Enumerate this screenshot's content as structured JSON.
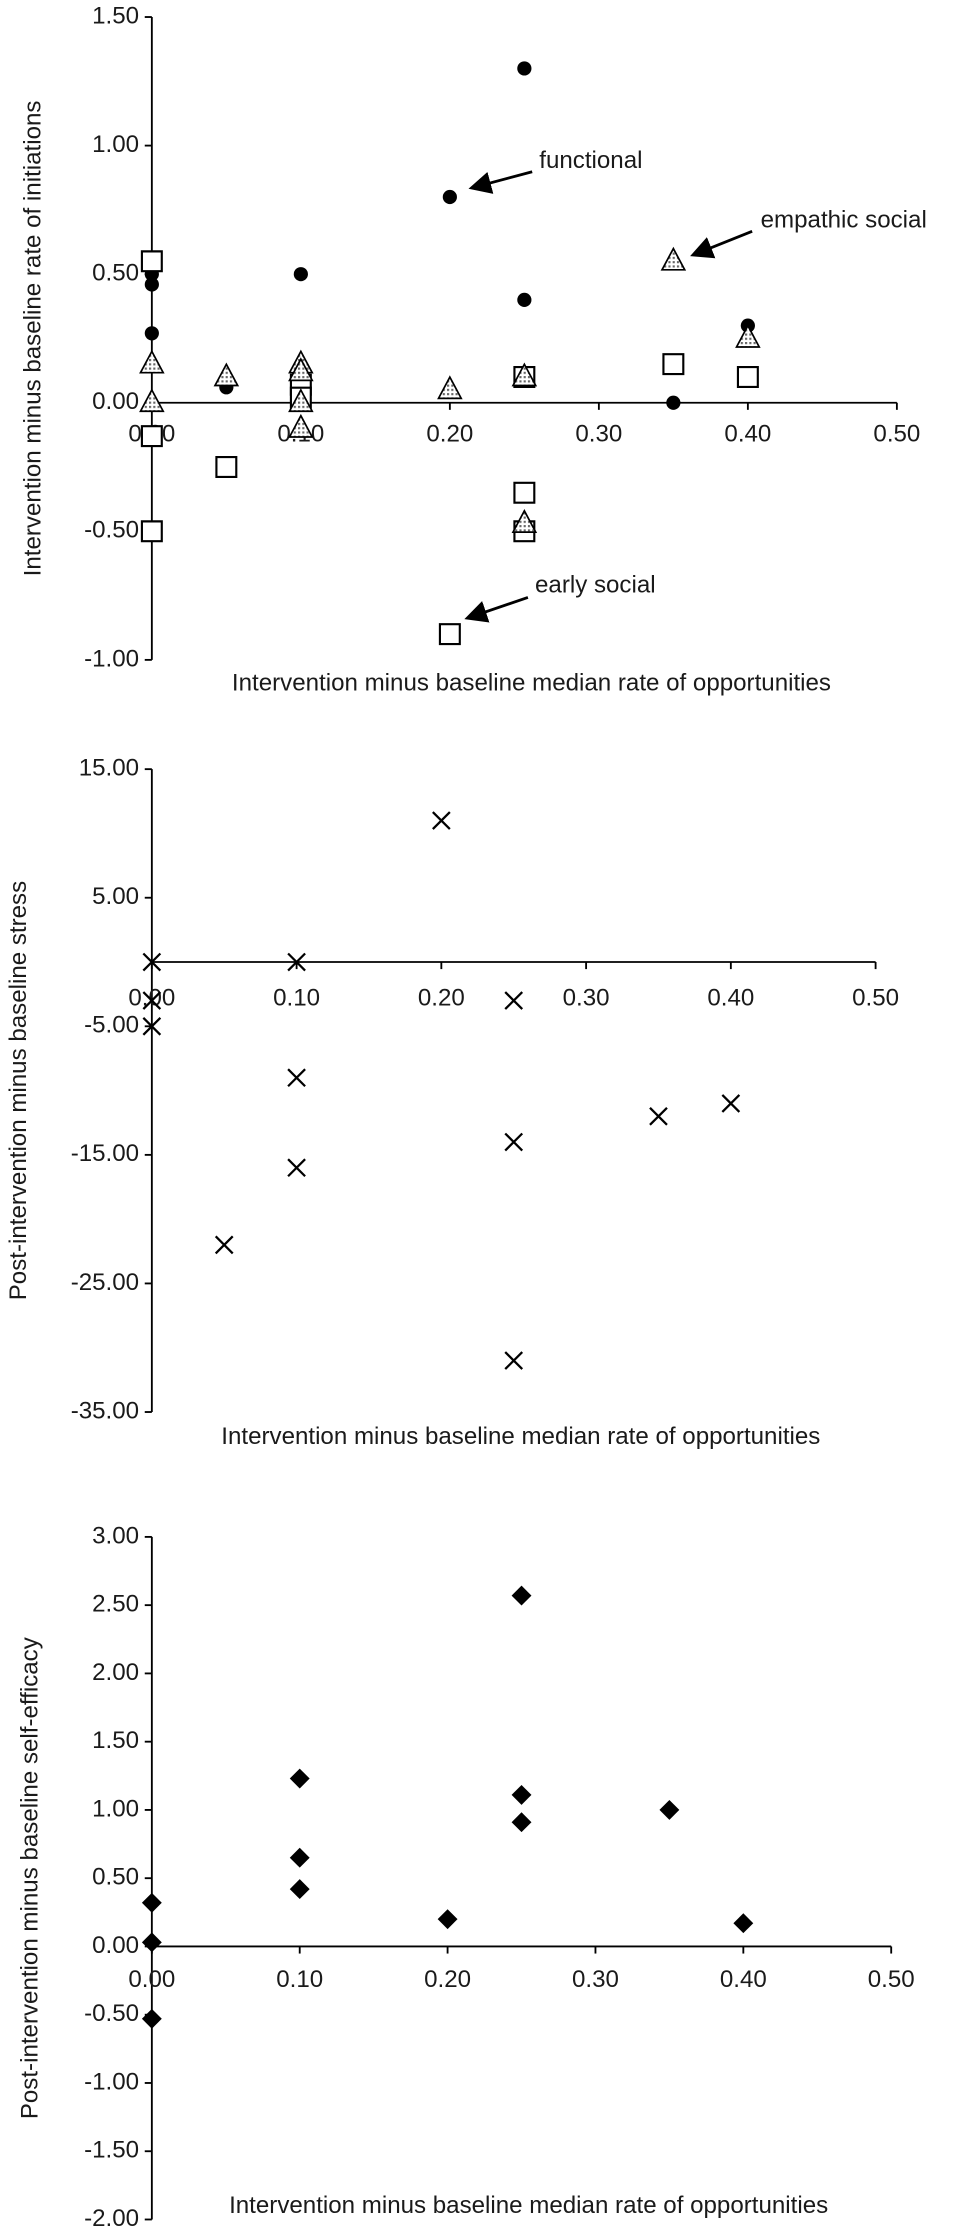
{
  "chart_data": [
    {
      "type": "scatter",
      "x_label": "Intervention minus baseline median rate of opportunities",
      "y_label": "Intervention minus baseline rate of initiations",
      "xlim": [
        0,
        0.5
      ],
      "xticks": [
        {
          "value": 0,
          "label": "0.00"
        },
        {
          "value": 0.1,
          "label": "0.10"
        },
        {
          "value": 0.2,
          "label": "0.20"
        },
        {
          "value": 0.3,
          "label": "0.30"
        },
        {
          "value": 0.4,
          "label": "0.40"
        },
        {
          "value": 0.5,
          "label": "0.50"
        }
      ],
      "ylim": [
        -1,
        1.5
      ],
      "yticks": [
        {
          "value": -1,
          "label": "-1.00"
        },
        {
          "value": -0.5,
          "label": "-0.50"
        },
        {
          "value": 0,
          "label": "0.00"
        },
        {
          "value": 0.5,
          "label": "0.50"
        },
        {
          "value": 1,
          "label": "1.00"
        },
        {
          "value": 1.5,
          "label": "1.50"
        }
      ],
      "series": [
        {
          "name": "functional",
          "marker": "circle",
          "color": "#000000",
          "x": [
            0,
            0,
            0,
            0.05,
            0.1,
            0.1,
            0.2,
            0.25,
            0.25,
            0.25,
            0.35,
            0.4
          ],
          "values": [
            0.5,
            0.46,
            0.27,
            0.06,
            0.5,
            0.1,
            0.8,
            1.3,
            0.4,
            0.1,
            0.0,
            0.3
          ]
        },
        {
          "name": "early social",
          "marker": "square",
          "color": "#000000",
          "x": [
            0,
            0,
            0,
            0.05,
            0.1,
            0.1,
            0.2,
            0.25,
            0.25,
            0.25,
            0.35,
            0.4
          ],
          "values": [
            0.55,
            -0.13,
            -0.5,
            -0.25,
            0.07,
            0.02,
            -0.9,
            -0.35,
            -0.5,
            0.1,
            0.15,
            0.1
          ]
        },
        {
          "name": "empathic social",
          "marker": "triangle",
          "color": "#000000",
          "x": [
            0,
            0,
            0.05,
            0.1,
            0.1,
            0.1,
            0.1,
            0.2,
            0.25,
            0.25,
            0.35,
            0.4
          ],
          "values": [
            0.15,
            0.0,
            0.1,
            0.15,
            0.12,
            0.0,
            -0.1,
            0.05,
            0.1,
            -0.47,
            0.55,
            0.25
          ]
        }
      ]
    },
    {
      "type": "scatter",
      "x_label": "Intervention minus baseline median rate of opportunities",
      "y_label": "Post-intervention minus baseline stress",
      "xlim": [
        0,
        0.5
      ],
      "xticks": [
        {
          "value": 0,
          "label": "0.00"
        },
        {
          "value": 0.1,
          "label": "0.10"
        },
        {
          "value": 0.2,
          "label": "0.20"
        },
        {
          "value": 0.3,
          "label": "0.30"
        },
        {
          "value": 0.4,
          "label": "0.40"
        },
        {
          "value": 0.5,
          "label": "0.50"
        }
      ],
      "ylim": [
        -35,
        15
      ],
      "yticks": [
        {
          "value": -35,
          "label": "-35.00"
        },
        {
          "value": -25,
          "label": "-25.00"
        },
        {
          "value": -15,
          "label": "-15.00"
        },
        {
          "value": -5,
          "label": "-5.00"
        },
        {
          "value": 5,
          "label": "5.00"
        },
        {
          "value": 15,
          "label": "15.00"
        }
      ],
      "series": [
        {
          "marker": "x",
          "color": "#000000",
          "x": [
            0,
            0,
            0,
            0.05,
            0.1,
            0.1,
            0.1,
            0.2,
            0.25,
            0.25,
            0.25,
            0.35,
            0.4
          ],
          "values": [
            0,
            -3,
            -5,
            -22,
            0,
            -9,
            -16,
            11,
            -3,
            -14,
            -31,
            -12,
            -11
          ]
        }
      ]
    },
    {
      "type": "scatter",
      "x_label": "Intervention minus baseline median rate of opportunities",
      "y_label": "Post-intervention minus baseline self-efficacy",
      "xlim": [
        0,
        0.5
      ],
      "xticks": [
        {
          "value": 0,
          "label": "0.00"
        },
        {
          "value": 0.1,
          "label": "0.10"
        },
        {
          "value": 0.2,
          "label": "0.20"
        },
        {
          "value": 0.3,
          "label": "0.30"
        },
        {
          "value": 0.4,
          "label": "0.40"
        },
        {
          "value": 0.5,
          "label": "0.50"
        }
      ],
      "ylim": [
        -2,
        3
      ],
      "yticks": [
        {
          "value": -2,
          "label": "-2.00"
        },
        {
          "value": -1.5,
          "label": "-1.50"
        },
        {
          "value": -1,
          "label": "-1.00"
        },
        {
          "value": -0.5,
          "label": "-0.50"
        },
        {
          "value": 0,
          "label": "0.00"
        },
        {
          "value": 0.5,
          "label": "0.50"
        },
        {
          "value": 1,
          "label": "1.00"
        },
        {
          "value": 1.5,
          "label": "1.50"
        },
        {
          "value": 2,
          "label": "2.00"
        },
        {
          "value": 2.5,
          "label": "2.50"
        },
        {
          "value": 3,
          "label": "3.00"
        }
      ],
      "series": [
        {
          "marker": "diamond",
          "color": "#000000",
          "x": [
            0,
            0,
            0,
            0.1,
            0.1,
            0.1,
            0.2,
            0.25,
            0.25,
            0.25,
            0.35,
            0.4
          ],
          "values": [
            0.32,
            0.03,
            -0.53,
            1.23,
            0.65,
            0.42,
            0.2,
            2.57,
            1.11,
            0.91,
            1.0,
            0.17
          ]
        }
      ]
    }
  ]
}
